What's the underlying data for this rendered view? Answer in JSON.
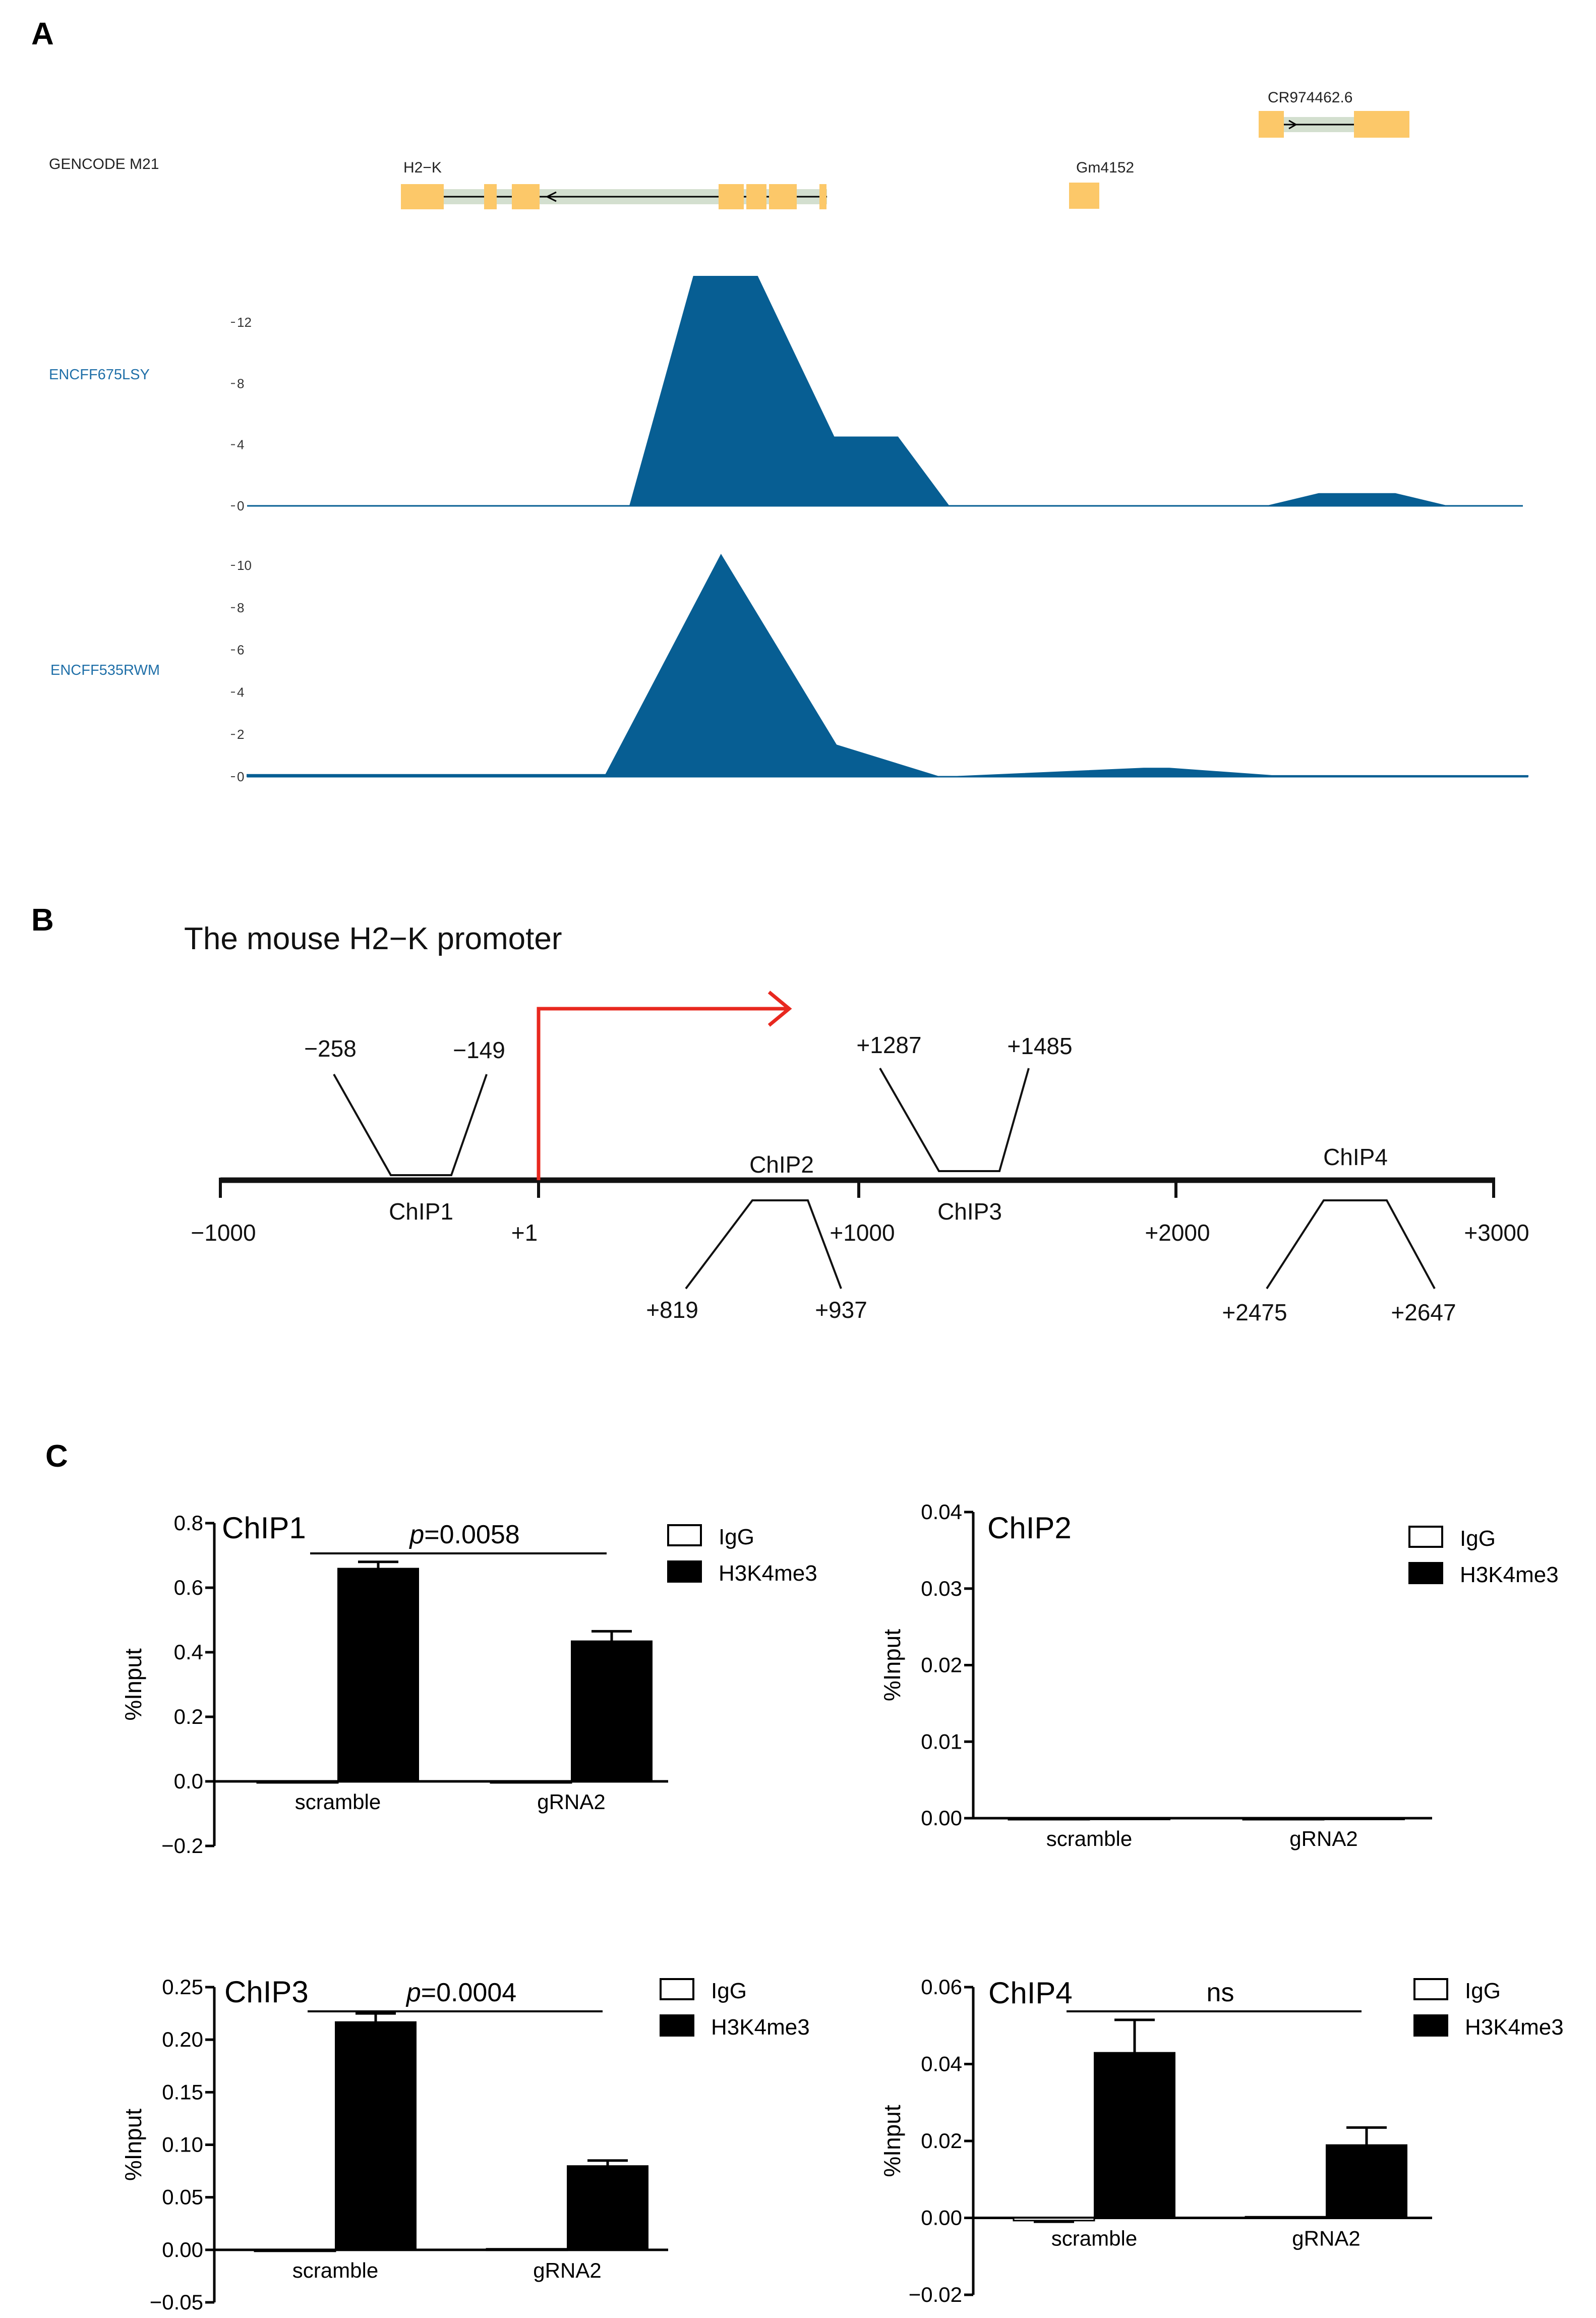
{
  "panel_a": {
    "label": "A",
    "annotation_track": "GENCODE  M21",
    "genes": [
      "H2−K",
      "Gm4152",
      "CR974462.6"
    ],
    "tracks": [
      {
        "name": "ENCFF675LSY",
        "ticks": [
          "12",
          "8",
          "4",
          "0"
        ],
        "tick_values": [
          12,
          8,
          4,
          0
        ],
        "ymax": 15,
        "profile_x": [
          0,
          0.3,
          0.35,
          0.4,
          0.46,
          0.51,
          0.55,
          0.6,
          0.8,
          0.84,
          0.88,
          0.9,
          0.94,
          0.97,
          1.0
        ],
        "profile_y": [
          0,
          0,
          15,
          15,
          4.5,
          4.5,
          0,
          0,
          0,
          0.8,
          0.8,
          0.8,
          0,
          0,
          0
        ]
      },
      {
        "name": "ENCFF535RWM",
        "ticks": [
          "10",
          "8",
          "6",
          "4",
          "2",
          "0"
        ],
        "tick_values": [
          10,
          8,
          6,
          4,
          2,
          0
        ],
        "ymax": 10.5,
        "profile_x": [
          0,
          0.28,
          0.37,
          0.46,
          0.54,
          0.55,
          0.7,
          0.72,
          0.8,
          0.9,
          1.0
        ],
        "profile_y": [
          0.1,
          0.1,
          10.5,
          1.5,
          0,
          0,
          0.4,
          0.4,
          0.05,
          0.05,
          0.05
        ]
      }
    ]
  },
  "panel_b": {
    "label": "B",
    "title": "The mouse H2−K promoter",
    "axis_ticks": [
      "−1000",
      "+1",
      "+1000",
      "+2000",
      "+3000"
    ],
    "regions": [
      {
        "name": "ChIP1",
        "start": "−258",
        "end": "−149"
      },
      {
        "name": "ChIP2",
        "start": "+819",
        "end": "+937"
      },
      {
        "name": "ChIP3",
        "start": "+1287",
        "end": "+1485"
      },
      {
        "name": "ChIP4",
        "start": "+2475",
        "end": "+2647"
      }
    ]
  },
  "panel_c": {
    "label": "C",
    "ylabel": "%Input"
  },
  "chart_data": [
    {
      "type": "bar",
      "title": "ChIP1",
      "categories": [
        "scramble",
        "gRNA2"
      ],
      "series": [
        {
          "name": "IgG",
          "values": [
            -0.003,
            -0.003
          ],
          "errors": [
            0,
            0
          ]
        },
        {
          "name": "H3K4me3",
          "values": [
            0.66,
            0.435
          ],
          "errors": [
            0.02,
            0.03
          ]
        }
      ],
      "ylim": [
        -0.2,
        0.8
      ],
      "yticks": [
        "0.8",
        "0.6",
        "0.4",
        "0.2",
        "0.0",
        "−0.2"
      ],
      "ylabel": "%Input",
      "annotation": {
        "prefix": "p",
        "text": "=0.0058"
      },
      "legend": [
        "IgG",
        "H3K4me3"
      ]
    },
    {
      "type": "bar",
      "title": "ChIP2",
      "categories": [
        "scramble",
        "gRNA2"
      ],
      "series": [
        {
          "name": "IgG",
          "values": [
            0,
            0
          ],
          "errors": [
            0,
            0
          ]
        },
        {
          "name": "H3K4me3",
          "values": [
            0,
            0
          ],
          "errors": [
            0,
            0
          ]
        }
      ],
      "ylim": [
        0,
        0.04
      ],
      "yticks": [
        "0.04",
        "0.03",
        "0.02",
        "0.01",
        "0.00"
      ],
      "ylabel": "%Input",
      "annotation": null,
      "legend": [
        "IgG",
        "H3K4me3"
      ]
    },
    {
      "type": "bar",
      "title": "ChIP3",
      "categories": [
        "scramble",
        "gRNA2"
      ],
      "series": [
        {
          "name": "IgG",
          "values": [
            -0.001,
            0.001
          ],
          "errors": [
            0,
            0
          ]
        },
        {
          "name": "H3K4me3",
          "values": [
            0.217,
            0.08
          ],
          "errors": [
            0.008,
            0.005
          ]
        }
      ],
      "ylim": [
        -0.05,
        0.25
      ],
      "yticks": [
        "0.25",
        "0.20",
        "0.15",
        "0.10",
        "0.05",
        "0.00",
        "−0.05"
      ],
      "ylabel": "%Input",
      "annotation": {
        "prefix": "p",
        "text": "=0.0004"
      },
      "legend": [
        "IgG",
        "H3K4me3"
      ]
    },
    {
      "type": "bar",
      "title": "ChIP4",
      "categories": [
        "scramble",
        "gRNA2"
      ],
      "series": [
        {
          "name": "IgG",
          "values": [
            -0.0007,
            0.0003
          ],
          "errors": [
            0.0003,
            0
          ]
        },
        {
          "name": "H3K4me3",
          "values": [
            0.043,
            0.019
          ],
          "errors": [
            0.0085,
            0.0045
          ]
        }
      ],
      "ylim": [
        -0.02,
        0.06
      ],
      "yticks": [
        "0.06",
        "0.04",
        "0.02",
        "0.00",
        "−0.02"
      ],
      "ylabel": "%Input",
      "annotation": {
        "prefix": "",
        "text": "ns"
      },
      "legend": [
        "IgG",
        "H3K4me3"
      ]
    }
  ]
}
